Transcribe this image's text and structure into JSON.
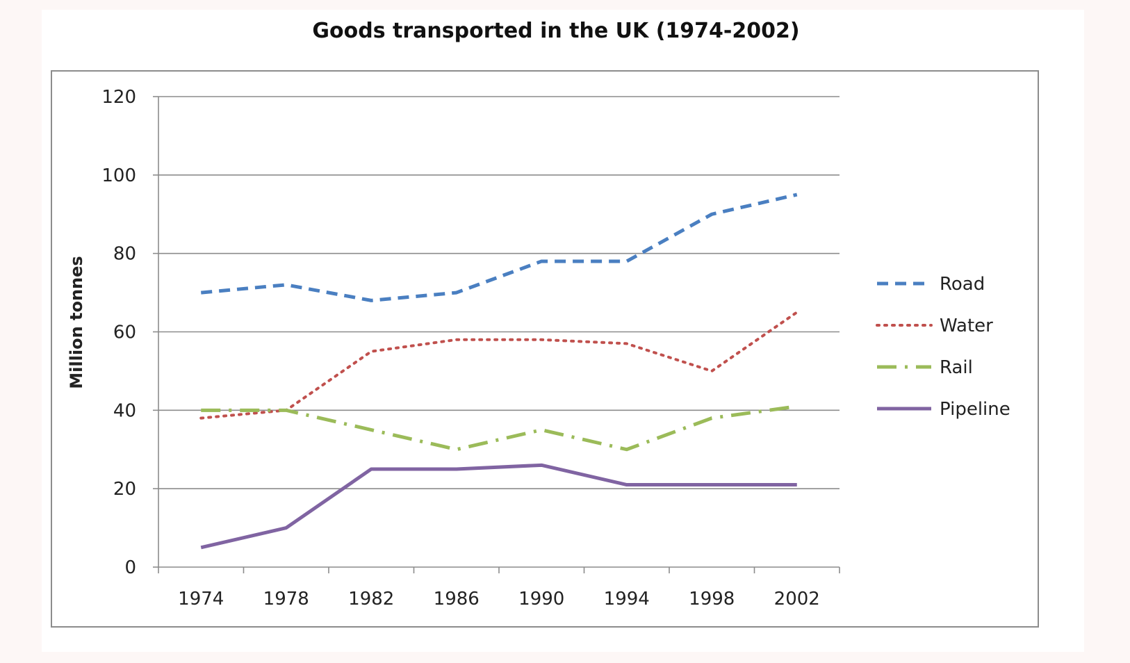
{
  "chart_data": {
    "type": "line",
    "title": "Goods transported in the UK (1974-2002)",
    "xlabel": "",
    "ylabel": "Million tonnes",
    "x": [
      "1974",
      "1978",
      "1982",
      "1986",
      "1990",
      "1994",
      "1998",
      "2002"
    ],
    "ylim": [
      0,
      120
    ],
    "yticks": [
      0,
      20,
      40,
      60,
      80,
      100,
      120
    ],
    "grid": true,
    "legend_position": "right",
    "series": [
      {
        "name": "Road",
        "style": "dashed",
        "color": "#4a7fc1",
        "values": [
          70,
          72,
          68,
          70,
          78,
          78,
          90,
          95
        ]
      },
      {
        "name": "Water",
        "style": "dotted",
        "color": "#c0504d",
        "values": [
          38,
          40,
          55,
          58,
          58,
          57,
          50,
          65
        ]
      },
      {
        "name": "Rail",
        "style": "dash-dot",
        "color": "#9bbb59",
        "values": [
          40,
          40,
          35,
          30,
          35,
          30,
          38,
          41
        ]
      },
      {
        "name": "Pipeline",
        "style": "solid",
        "color": "#8064a2",
        "values": [
          5,
          10,
          25,
          25,
          26,
          21,
          21,
          21
        ]
      }
    ]
  }
}
